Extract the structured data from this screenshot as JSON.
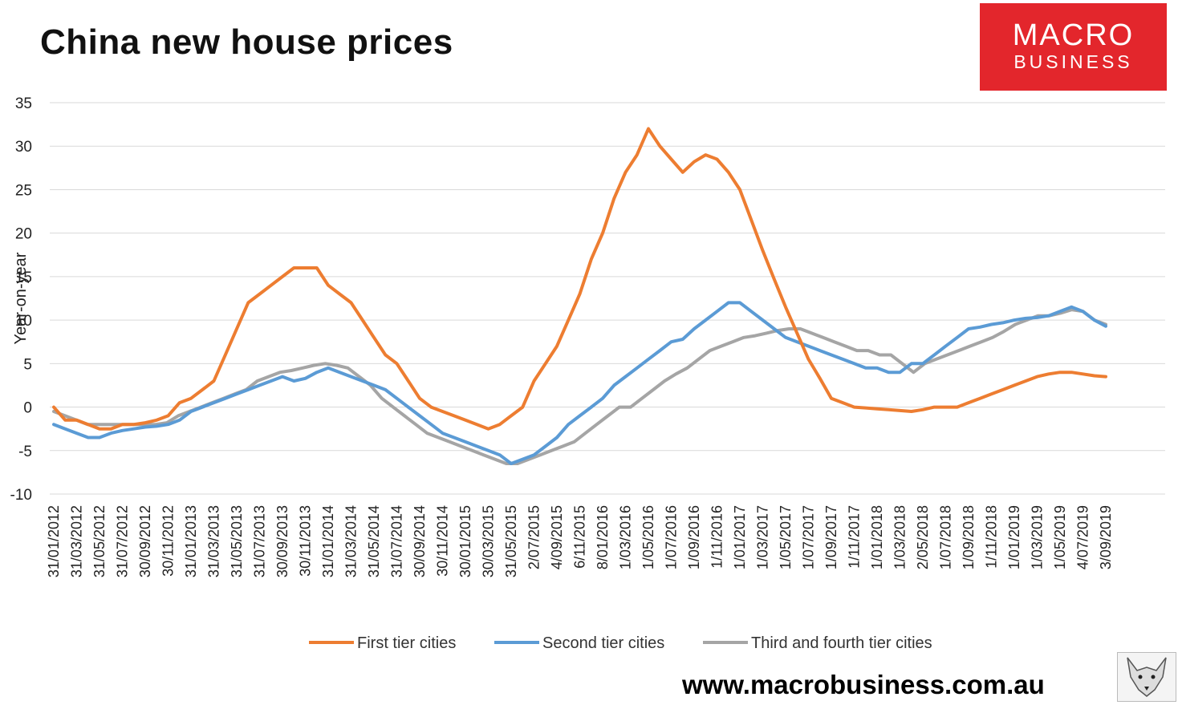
{
  "title": "China new house prices",
  "logo": {
    "line1": "MACRO",
    "line2": "BUSINESS",
    "color": "#e3262c"
  },
  "website": "www.macrobusiness.com.au",
  "fox_icon": "fox-icon",
  "chart_data": {
    "type": "line",
    "title": "China new house prices",
    "ylabel": "Year-on-year",
    "xlabel": "",
    "ylim": [
      -10,
      35
    ],
    "yticks": [
      -10,
      -5,
      0,
      5,
      10,
      15,
      20,
      25,
      30,
      35
    ],
    "grid": true,
    "legend": "bottom",
    "x_tick_labels": [
      "31/01/2012",
      "31/03/2012",
      "31/05/2012",
      "31/07/2012",
      "30/09/2012",
      "30/11/2012",
      "31/01/2013",
      "31/03/2013",
      "31/05/2013",
      "31/07/2013",
      "30/09/2013",
      "30/11/2013",
      "31/01/2014",
      "31/03/2014",
      "31/05/2014",
      "31/07/2014",
      "30/09/2014",
      "30/11/2014",
      "30/01/2015",
      "30/03/2015",
      "31/05/2015",
      "2/07/2015",
      "4/09/2015",
      "6/11/2015",
      "8/01/2016",
      "1/03/2016",
      "1/05/2016",
      "1/07/2016",
      "1/09/2016",
      "1/11/2016",
      "1/01/2017",
      "1/03/2017",
      "1/05/2017",
      "1/07/2017",
      "1/09/2017",
      "1/11/2017",
      "1/01/2018",
      "1/03/2018",
      "2/05/2018",
      "1/07/2018",
      "1/09/2018",
      "1/11/2018",
      "1/01/2019",
      "1/03/2019",
      "1/05/2019",
      "4/07/2019",
      "3/09/2019"
    ],
    "series": [
      {
        "name": "First tier cities",
        "color": "#ed7d31",
        "values": [
          0,
          -1.5,
          -1.5,
          -2,
          -2.5,
          -2.5,
          -2,
          -2,
          -1.8,
          -1.5,
          -1,
          0.5,
          1,
          2,
          3,
          6,
          9,
          12,
          13,
          14,
          15,
          16,
          16,
          16,
          14,
          13,
          12,
          10,
          8,
          6,
          5,
          3,
          1,
          0,
          -0.5,
          -1,
          -1.5,
          -2,
          -2.5,
          -2,
          -1,
          0,
          3,
          5,
          7,
          10,
          13,
          17,
          20,
          24,
          27,
          29,
          32,
          30,
          28.5,
          27,
          28.2,
          29,
          28.5,
          27,
          25,
          21.5,
          18,
          14.7,
          11.5,
          8.5,
          5.5,
          3.3,
          1,
          0.5,
          0,
          -0.1,
          -0.2,
          -0.3,
          -0.4,
          -0.5,
          -0.3,
          0,
          0,
          0,
          0.5,
          1,
          1.5,
          2,
          2.5,
          3,
          3.5,
          3.8,
          4,
          4,
          3.8,
          3.6,
          3.5
        ]
      },
      {
        "name": "Second tier cities",
        "color": "#5b9bd5",
        "values": [
          -2,
          -2.5,
          -3,
          -3.5,
          -3.5,
          -3,
          -2.7,
          -2.5,
          -2.3,
          -2.2,
          -2,
          -1.5,
          -0.5,
          0,
          0.5,
          1,
          1.5,
          2,
          2.5,
          3,
          3.5,
          3,
          3.3,
          4,
          4.5,
          4,
          3.5,
          3,
          2.5,
          2,
          1,
          0,
          -1,
          -2,
          -3,
          -3.5,
          -4,
          -4.5,
          -5,
          -5.5,
          -6.5,
          -6,
          -5.5,
          -4.5,
          -3.5,
          -2,
          -1,
          0,
          1,
          2.5,
          3.5,
          4.5,
          5.5,
          6.5,
          7.5,
          7.8,
          9,
          10,
          11,
          12,
          12,
          11,
          10,
          9,
          8,
          7.5,
          7,
          6.5,
          6,
          5.5,
          5,
          4.5,
          4.5,
          4,
          4,
          5,
          5,
          6,
          7,
          8,
          9,
          9.2,
          9.5,
          9.7,
          10,
          10.2,
          10.3,
          10.5,
          11,
          11.5,
          11,
          10,
          9.3
        ]
      },
      {
        "name": "Third and fourth tier cities",
        "color": "#a5a5a5",
        "values": [
          -0.5,
          -1,
          -1.5,
          -2,
          -2,
          -2,
          -2,
          -2,
          -2,
          -2,
          -1.8,
          -1,
          -0.5,
          0,
          0.5,
          1,
          1.5,
          2,
          3,
          3.5,
          4,
          4.2,
          4.5,
          4.8,
          5,
          4.8,
          4.5,
          3.5,
          2.5,
          1,
          0,
          -1,
          -2,
          -3,
          -3.5,
          -4,
          -4.5,
          -5,
          -5.5,
          -6,
          -6.5,
          -6.5,
          -6,
          -5.5,
          -5,
          -4.5,
          -4,
          -3,
          -2,
          -1,
          0,
          0,
          1,
          2,
          3,
          3.8,
          4.5,
          5.5,
          6.5,
          7,
          7.5,
          8,
          8.2,
          8.5,
          8.8,
          9,
          9,
          8.5,
          8,
          7.5,
          7,
          6.5,
          6.5,
          6,
          6,
          5,
          4,
          5,
          5.5,
          6,
          6.5,
          7,
          7.5,
          8,
          8.7,
          9.5,
          10,
          10.5,
          10.5,
          10.8,
          11.2,
          11,
          10,
          9.5
        ]
      }
    ]
  }
}
